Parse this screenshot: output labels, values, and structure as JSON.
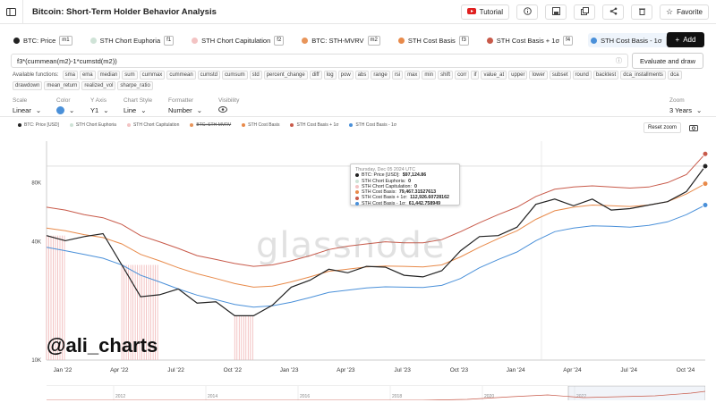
{
  "window": {
    "title": "Bitcoin: Short-Term Holder Behavior Analysis"
  },
  "toolbar": {
    "tutorial_label": "Tutorial",
    "favorite_label": "Favorite"
  },
  "metrics": [
    {
      "label": "BTC: Price",
      "key": "m1",
      "color": "#222222",
      "selected": false
    },
    {
      "label": "STH Chort Euphoria",
      "key": "f1",
      "color": "#cfe3d7",
      "selected": false
    },
    {
      "label": "STH Chort Capitulation",
      "key": "f2",
      "color": "#f3c3c3",
      "selected": false
    },
    {
      "label": "BTC: STH-MVRV",
      "key": "m2",
      "color": "#e8955a",
      "selected": false
    },
    {
      "label": "STH Cost Basis",
      "key": "f3",
      "color": "#e88a4a",
      "selected": false
    },
    {
      "label": "STH Cost Basis + 1σ",
      "key": "f4",
      "color": "#c85a4a",
      "selected": false
    },
    {
      "label": "STH Cost Basis - 1σ",
      "key": "f5",
      "color": "#4a90d9",
      "selected": true
    }
  ],
  "add_label": "Add",
  "formula": {
    "value": "f3*(cummean(m2)-1*cumstd(m2))",
    "button": "Evaluate and draw"
  },
  "functions": {
    "label": "Available functions:",
    "items": [
      "sma",
      "ema",
      "median",
      "sum",
      "cummax",
      "cummean",
      "cumstd",
      "cumsum",
      "std",
      "percent_change",
      "diff",
      "log",
      "pow",
      "abs",
      "range",
      "rsi",
      "max",
      "min",
      "shift",
      "corr",
      "if",
      "value_at",
      "upper",
      "lower",
      "subset",
      "round",
      "backtest",
      "dca_installments",
      "dca",
      "drawdown",
      "mean_return",
      "realized_vol",
      "sharpe_ratio"
    ]
  },
  "controls": {
    "scale": {
      "label": "Scale",
      "value": "Linear"
    },
    "color": {
      "label": "Color",
      "value_color": "#4a90d9"
    },
    "y_axis": {
      "label": "Y Axis",
      "value": "Y1"
    },
    "chart_style": {
      "label": "Chart Style",
      "value": "Line"
    },
    "formatter": {
      "label": "Formatter",
      "value": "Number"
    },
    "visibility": {
      "label": "Visibility"
    },
    "zoom": {
      "label": "Zoom",
      "value": "3 Years"
    }
  },
  "legend": [
    {
      "label": "BTC: Price [USD]",
      "color": "#222222",
      "struck": false
    },
    {
      "label": "STH Chort Euphoria",
      "color": "#cfe3d7",
      "struck": false
    },
    {
      "label": "STH Chort Capitulation",
      "color": "#f3c3c3",
      "struck": false
    },
    {
      "label": "BTC: STH-MVRV",
      "color": "#e8955a",
      "struck": true
    },
    {
      "label": "STH Cost Basis",
      "color": "#e88a4a",
      "struck": false
    },
    {
      "label": "STH Cost Basis + 1σ",
      "color": "#c85a4a",
      "struck": false
    },
    {
      "label": "STH Cost Basis - 1σ",
      "color": "#4a90d9",
      "struck": false
    }
  ],
  "reset_zoom_label": "Reset zoom",
  "tooltip": {
    "date": "Thursday, Dec 05 2024 UTC",
    "rows": [
      {
        "label": "BTC: Price [USD]:",
        "value": "$97,124.86",
        "color": "#222222"
      },
      {
        "label": "STH Chort Euphoria:",
        "value": "0",
        "color": "#cfe3d7"
      },
      {
        "label": "STH Chort Capitulation:",
        "value": "0",
        "color": "#f3c3c3"
      },
      {
        "label": "STH Cost Basis:",
        "value": "79,467.31527613",
        "color": "#e88a4a"
      },
      {
        "label": "STH Cost Basis + 1σ:",
        "value": "112,926.60728162",
        "color": "#c85a4a"
      },
      {
        "label": "STH Cost Basis - 1σ:",
        "value": "61,442.758949",
        "color": "#4a90d9"
      }
    ]
  },
  "watermark": "glassnode",
  "handle": "@ali_charts",
  "navigator_years": [
    "2012",
    "2014",
    "2016",
    "2018",
    "2020",
    "2022"
  ],
  "chart_data": {
    "type": "line",
    "scale": "log",
    "ylim": [
      10000,
      130000
    ],
    "y_ticks": [
      {
        "value": 10000,
        "label": "10K"
      },
      {
        "value": 40000,
        "label": "40K"
      },
      {
        "value": 80000,
        "label": "80K"
      }
    ],
    "x_ticks": [
      "Jan '22",
      "Apr '22",
      "Jul '22",
      "Oct '22",
      "Jan '23",
      "Apr '23",
      "Jul '23",
      "Oct '23",
      "Jan '24",
      "Apr '24",
      "Jul '24",
      "Oct '24"
    ],
    "x": [
      "2022-01",
      "2022-02",
      "2022-03",
      "2022-04",
      "2022-05",
      "2022-06",
      "2022-07",
      "2022-08",
      "2022-09",
      "2022-10",
      "2022-11",
      "2022-12",
      "2023-01",
      "2023-02",
      "2023-03",
      "2023-04",
      "2023-05",
      "2023-06",
      "2023-07",
      "2023-08",
      "2023-09",
      "2023-10",
      "2023-11",
      "2023-12",
      "2024-01",
      "2024-02",
      "2024-03",
      "2024-04",
      "2024-05",
      "2024-06",
      "2024-07",
      "2024-08",
      "2024-09",
      "2024-10",
      "2024-11",
      "2024-12"
    ],
    "series": [
      {
        "name": "BTC: Price [USD]",
        "color": "#222222",
        "values": [
          43000,
          40500,
          42500,
          44000,
          30500,
          21000,
          21500,
          23000,
          19500,
          19800,
          16800,
          16800,
          19000,
          23500,
          25500,
          29000,
          27800,
          30000,
          29700,
          27000,
          26500,
          28500,
          36000,
          42500,
          43000,
          47500,
          62000,
          66000,
          61000,
          66000,
          58000,
          59000,
          61500,
          64000,
          72000,
          97000
        ]
      },
      {
        "name": "STH Cost Basis + 1σ",
        "color": "#c85a4a",
        "values": [
          60000,
          58000,
          55000,
          53000,
          49000,
          43000,
          40000,
          37000,
          34000,
          32500,
          31000,
          30000,
          30500,
          32000,
          34000,
          36500,
          38000,
          39000,
          40000,
          39500,
          39500,
          41000,
          45000,
          50000,
          55000,
          60000,
          68000,
          74000,
          76000,
          77000,
          76000,
          75000,
          76000,
          80000,
          88000,
          112000
        ]
      },
      {
        "name": "STH Cost Basis",
        "color": "#e88a4a",
        "values": [
          47000,
          45500,
          43500,
          42000,
          39000,
          34500,
          32000,
          29500,
          27500,
          26000,
          24500,
          23500,
          23800,
          25000,
          26500,
          28300,
          29000,
          29800,
          30100,
          30000,
          29800,
          30500,
          33500,
          37500,
          41500,
          45500,
          52000,
          57500,
          60000,
          61500,
          61000,
          60500,
          61500,
          64000,
          70000,
          79000
        ]
      },
      {
        "name": "STH Cost Basis - 1σ",
        "color": "#4a90d9",
        "values": [
          37500,
          36000,
          34500,
          33000,
          30500,
          27000,
          25000,
          23000,
          21400,
          20300,
          19200,
          18600,
          18900,
          19700,
          20800,
          22100,
          22700,
          23300,
          23600,
          23500,
          23400,
          24000,
          26000,
          29500,
          32500,
          35500,
          40500,
          45000,
          47000,
          48200,
          48000,
          47500,
          48500,
          50500,
          55000,
          61500
        ]
      }
    ],
    "capitulation_bands": [
      [
        "2022-01",
        "2022-02"
      ],
      [
        "2022-05",
        "2022-07"
      ],
      [
        "2022-11",
        "2022-12"
      ]
    ]
  }
}
